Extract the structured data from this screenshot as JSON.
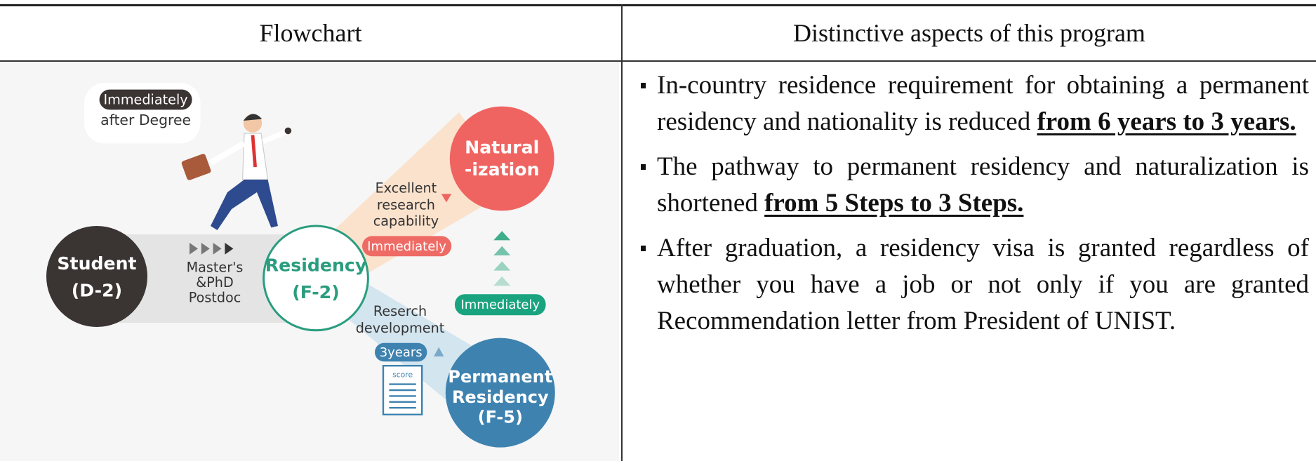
{
  "table": {
    "headers": [
      "Flowchart",
      "Distinctive aspects of this program"
    ],
    "flowchart": {
      "bubble": {
        "pill": "Immediately",
        "text": "after Degree"
      },
      "student": [
        "Student",
        "(D-2)"
      ],
      "study": [
        "Master's",
        "&PhD",
        "Postdoc"
      ],
      "residency": [
        "Residency",
        "(F-2)"
      ],
      "naturalization": [
        "Natural",
        "-ization"
      ],
      "excellent": [
        "Excellent",
        "research",
        "capability"
      ],
      "immediately_red": "Immediately",
      "immediately_green": "Immediately",
      "research": [
        "Reserch",
        "development"
      ],
      "years": "3years",
      "score": "score",
      "permanent": [
        "Permanent",
        "Residency",
        "(F-5)"
      ]
    },
    "aspects": [
      {
        "text": "In-country residence requirement for obtaining a permanent residency and nationality is reduced",
        "emphasis": "from 6 years to 3 years."
      },
      {
        "text": "The pathway to permanent residency and naturalization is shortened",
        "emphasis": "from 5 Steps to 3 Steps."
      },
      {
        "text": "After graduation, a residency visa is granted regardless of whether you have a job or not only if you are granted Recommendation letter from President of UNIST."
      }
    ]
  }
}
